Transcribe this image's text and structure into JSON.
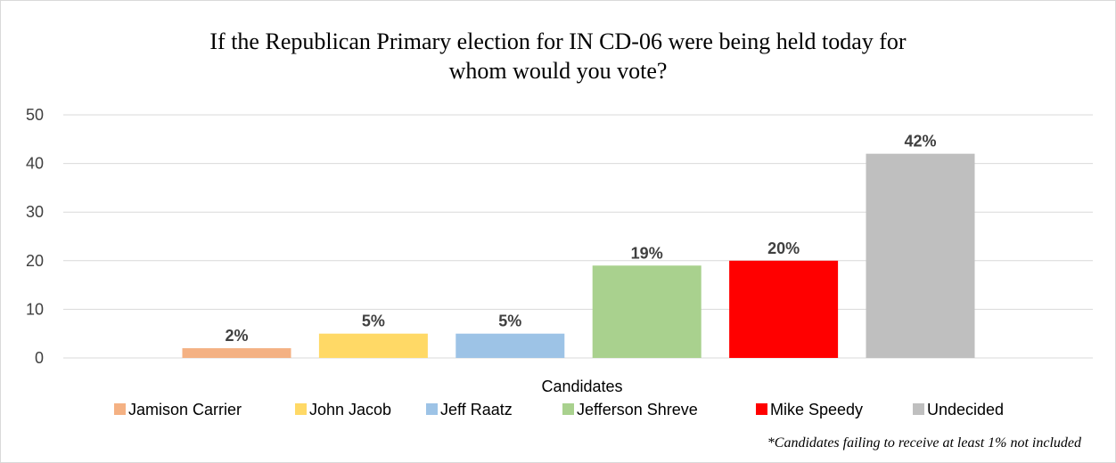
{
  "chart_data": {
    "type": "bar",
    "title_line1": "If the Republican Primary election for IN CD-06 were being held today for",
    "title_line2": "whom would you vote?",
    "xlabel": "Candidates",
    "ylabel": "",
    "ylim": [
      0,
      50
    ],
    "yticks": [
      0,
      10,
      20,
      30,
      40,
      50
    ],
    "grid": true,
    "legend_position": "bottom",
    "categories": [
      "Jamison Carrier",
      "John Jacob",
      "Jeff Raatz",
      "Jefferson Shreve",
      "Mike Speedy",
      "Undecided"
    ],
    "values": [
      2,
      5,
      5,
      19,
      20,
      42
    ],
    "data_labels": [
      "2%",
      "5%",
      "5%",
      "19%",
      "20%",
      "42%"
    ],
    "colors": [
      "#F4B183",
      "#FFD966",
      "#9DC3E6",
      "#A9D18E",
      "#FF0000",
      "#BFBFBF"
    ],
    "footnote": "*Candidates failing to receive at least 1% not included"
  }
}
